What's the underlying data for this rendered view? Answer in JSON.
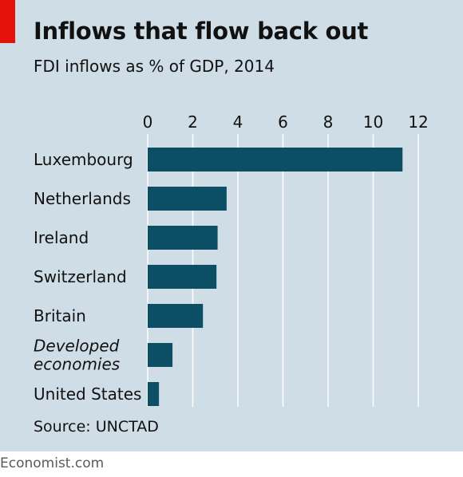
{
  "header": {
    "title": "Inflows that flow back out",
    "subtitle": "FDI inflows as % of GDP, 2014"
  },
  "footer": {
    "source": "Source: UNCTAD",
    "brand": "Economist.com"
  },
  "colors": {
    "background": "#cedde6",
    "bar": "#0c4e64",
    "gridline": "#ffffff",
    "accent": "#e3120b"
  },
  "chart_data": {
    "type": "bar",
    "orientation": "horizontal",
    "title": "Inflows that flow back out",
    "subtitle": "FDI inflows as % of GDP, 2014",
    "xlabel": "",
    "ylabel": "",
    "xlim": [
      0,
      12
    ],
    "ticks": [
      0,
      2,
      4,
      6,
      8,
      10,
      12
    ],
    "grid": true,
    "categories": [
      "Luxembourg",
      "Netherlands",
      "Ireland",
      "Switzerland",
      "Britain",
      "Developed economies",
      "United States"
    ],
    "category_lines": [
      [
        "Luxembourg"
      ],
      [
        "Netherlands"
      ],
      [
        "Ireland"
      ],
      [
        "Switzerland"
      ],
      [
        "Britain"
      ],
      [
        "Developed",
        "economies"
      ],
      [
        "United States"
      ]
    ],
    "italic": [
      false,
      false,
      false,
      false,
      false,
      true,
      false
    ],
    "values": [
      11.3,
      3.5,
      3.1,
      3.05,
      2.45,
      1.1,
      0.5
    ]
  }
}
